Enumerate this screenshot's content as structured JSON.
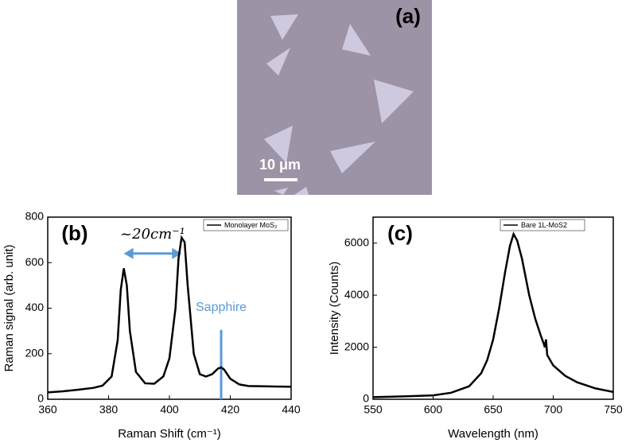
{
  "micrograph": {
    "label": "(a)",
    "scale_bar": "10 μm"
  },
  "chart_data": [
    {
      "type": "line",
      "panel_label": "(b)",
      "xlabel": "Raman Shift (cm⁻¹)",
      "ylabel": "Raman signal (arb. unit)",
      "xlim": [
        360,
        440
      ],
      "xticks": [
        360,
        380,
        400,
        420,
        440
      ],
      "ylim": [
        0,
        800
      ],
      "yticks": [
        0,
        200,
        400,
        600,
        800
      ],
      "x": [
        360,
        365,
        370,
        375,
        378,
        381,
        383,
        384,
        385,
        386,
        387,
        389,
        392,
        395,
        398,
        400,
        402,
        403,
        404,
        405,
        406,
        408,
        410,
        412,
        414,
        416,
        417,
        418,
        420,
        423,
        426,
        430,
        435,
        440
      ],
      "series": [
        {
          "name": "Monolayer MoS₂",
          "color": "#000000",
          "values": [
            30,
            35,
            42,
            50,
            60,
            100,
            260,
            480,
            575,
            500,
            300,
            120,
            70,
            68,
            100,
            180,
            400,
            620,
            710,
            690,
            500,
            200,
            110,
            100,
            110,
            135,
            140,
            130,
            90,
            65,
            58,
            57,
            56,
            55
          ]
        }
      ],
      "legend": "upper right",
      "annotations": [
        {
          "text": "~20cm⁻¹",
          "x_range": [
            385,
            404
          ],
          "y": 640,
          "color": "#5b9bd5"
        },
        {
          "text": "Sapphire",
          "x": 417,
          "y": 305,
          "color": "#5b9bd5"
        }
      ]
    },
    {
      "type": "line",
      "panel_label": "(c)",
      "xlabel": "Wavelength (nm)",
      "ylabel": "Intensity (Counts)",
      "xlim": [
        550,
        750
      ],
      "xticks": [
        550,
        600,
        650,
        700,
        750
      ],
      "ylim": [
        0,
        7000
      ],
      "yticks": [
        0,
        2000,
        4000,
        6000
      ],
      "x": [
        550,
        575,
        600,
        615,
        630,
        640,
        645,
        650,
        655,
        660,
        664,
        667,
        670,
        674,
        680,
        685,
        690,
        692,
        693,
        694,
        695,
        700,
        710,
        720,
        735,
        750
      ],
      "series": [
        {
          "name": "Bare 1L-MoS2",
          "color": "#000000",
          "values": [
            80,
            110,
            150,
            250,
            500,
            1000,
            1500,
            2300,
            3500,
            4900,
            5900,
            6350,
            6100,
            5400,
            4000,
            3100,
            2400,
            2150,
            2000,
            2300,
            1700,
            1300,
            900,
            650,
            420,
            280
          ]
        }
      ],
      "legend": "upper left"
    }
  ]
}
